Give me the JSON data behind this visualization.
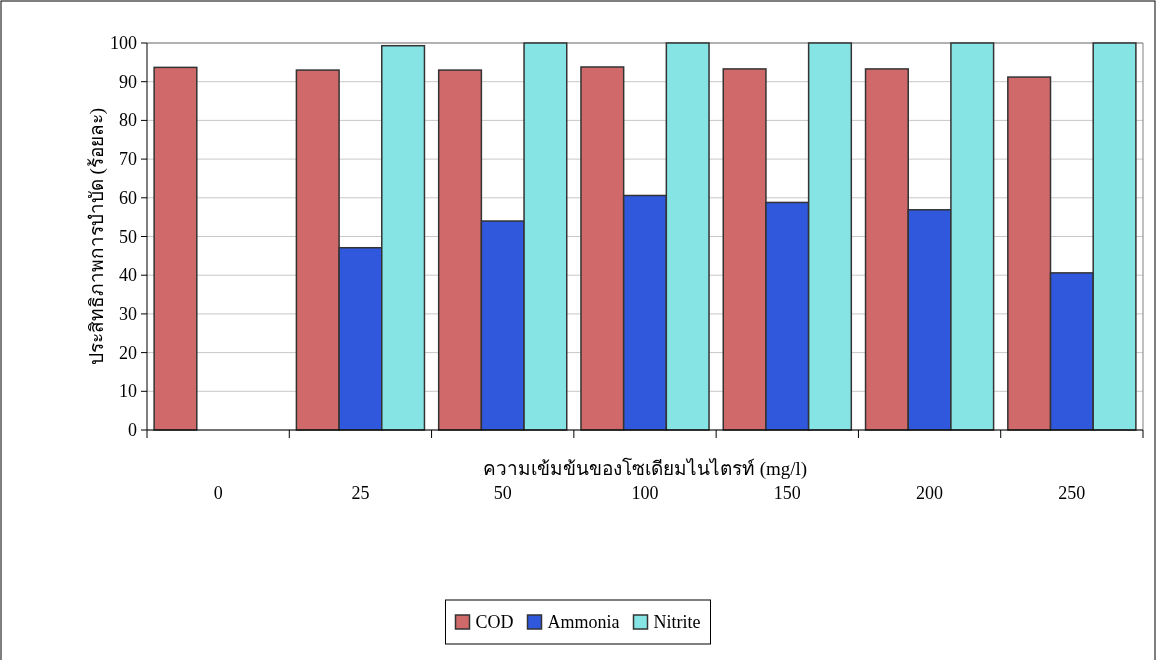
{
  "chart_data": {
    "type": "bar",
    "categories": [
      "0",
      "25",
      "50",
      "100",
      "150",
      "200",
      "250"
    ],
    "xlabel": "ความเข้มข้นของโซเดียมไนไตรท์ (mg/l)",
    "ylabel": "ประสิทธิภาพการบำบัด (ร้อยละ)",
    "ylim": [
      0,
      100
    ],
    "yticks": [
      0,
      10,
      20,
      30,
      40,
      50,
      60,
      70,
      80,
      90,
      100
    ],
    "grid": "y",
    "legend": "bottom",
    "series": [
      {
        "name": "COD",
        "color": "#d06a6a",
        "values": [
          93.7,
          93.0,
          93.0,
          93.8,
          93.3,
          93.3,
          91.2
        ]
      },
      {
        "name": "Ammonia",
        "color": "#2f58dc",
        "values": [
          null,
          47.1,
          54.0,
          60.6,
          58.8,
          56.9,
          40.6
        ]
      },
      {
        "name": "Nitrite",
        "color": "#86e4e4",
        "values": [
          null,
          99.3,
          100,
          100,
          100,
          100,
          100
        ]
      }
    ]
  }
}
